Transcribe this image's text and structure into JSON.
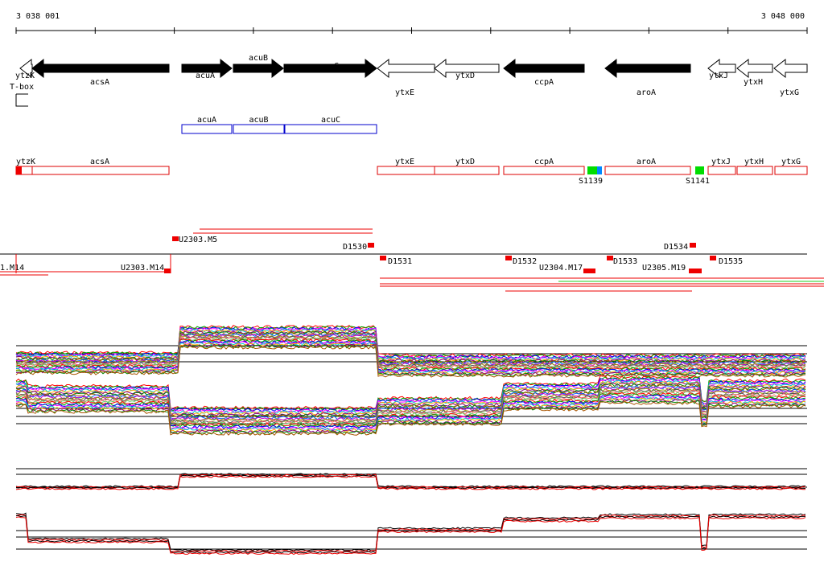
{
  "ruler": {
    "start": "3 038 001",
    "end": "3 048 000"
  },
  "genes": [
    "ytzK",
    "acsA",
    "acuA",
    "acuB",
    "acuC",
    "ytxE",
    "ytxD",
    "ccpA",
    "aroA",
    "ytxJ",
    "ytxH",
    "ytxG"
  ],
  "tbox": "T-box",
  "operon": [
    "acuA",
    "acuB",
    "acuC"
  ],
  "annotations": [
    "ytzK",
    "acsA",
    "ytxE",
    "ytxD",
    "ccpA",
    "aroA",
    "ytxJ",
    "ytxH",
    "ytxG"
  ],
  "sites": [
    "S1139",
    "S1141"
  ],
  "probes": [
    "1.M14",
    "U2303.M14",
    "U2303.M5",
    "D1530",
    "D1531",
    "D1532",
    "U2304.M17",
    "D1533",
    "U2305.M19",
    "D1534",
    "D1535"
  ]
}
